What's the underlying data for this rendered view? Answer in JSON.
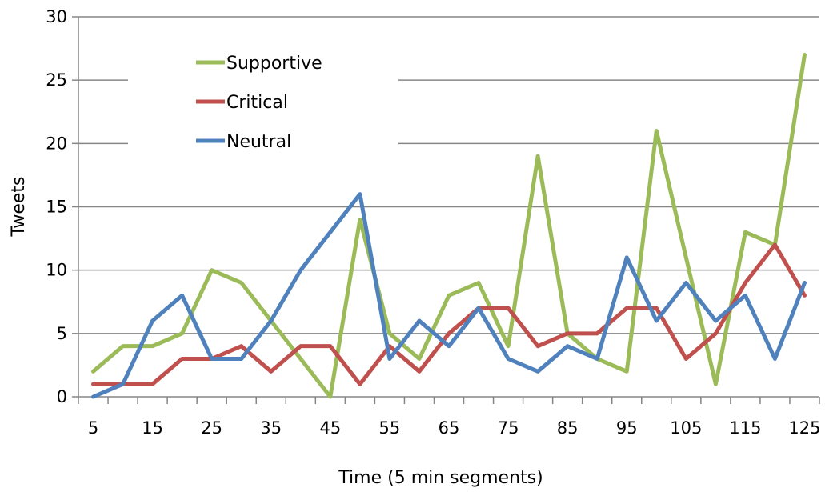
{
  "chart_data": {
    "type": "line",
    "title": "",
    "xlabel": "Time (5 min segments)",
    "ylabel": "Tweets",
    "x": [
      5,
      10,
      15,
      20,
      25,
      30,
      35,
      40,
      45,
      50,
      55,
      60,
      65,
      70,
      75,
      80,
      85,
      90,
      95,
      100,
      105,
      110,
      115,
      120,
      125
    ],
    "x_tick_labels": [
      "5",
      "15",
      "25",
      "35",
      "45",
      "55",
      "65",
      "75",
      "85",
      "95",
      "105",
      "115",
      "125"
    ],
    "ylim": [
      0,
      30
    ],
    "y_ticks": [
      0,
      5,
      10,
      15,
      20,
      25,
      30
    ],
    "grid": "horizontal",
    "legend_position": "top-left",
    "series": [
      {
        "name": "Supportive",
        "color": "#9BBB59",
        "values": [
          2,
          4,
          4,
          5,
          10,
          9,
          6,
          3,
          0,
          14,
          5,
          3,
          8,
          9,
          4,
          19,
          5,
          3,
          2,
          21,
          11,
          1,
          13,
          12,
          27
        ]
      },
      {
        "name": "Critical",
        "color": "#C0504D",
        "values": [
          1,
          1,
          1,
          3,
          3,
          4,
          2,
          4,
          4,
          1,
          4,
          2,
          5,
          7,
          7,
          4,
          5,
          5,
          7,
          7,
          3,
          5,
          9,
          12,
          8
        ]
      },
      {
        "name": "Neutral",
        "color": "#4F81BD",
        "values": [
          0,
          1,
          6,
          8,
          3,
          3,
          6,
          10,
          13,
          16,
          3,
          6,
          4,
          7,
          3,
          2,
          4,
          3,
          11,
          6,
          9,
          6,
          8,
          3,
          9
        ]
      }
    ]
  }
}
